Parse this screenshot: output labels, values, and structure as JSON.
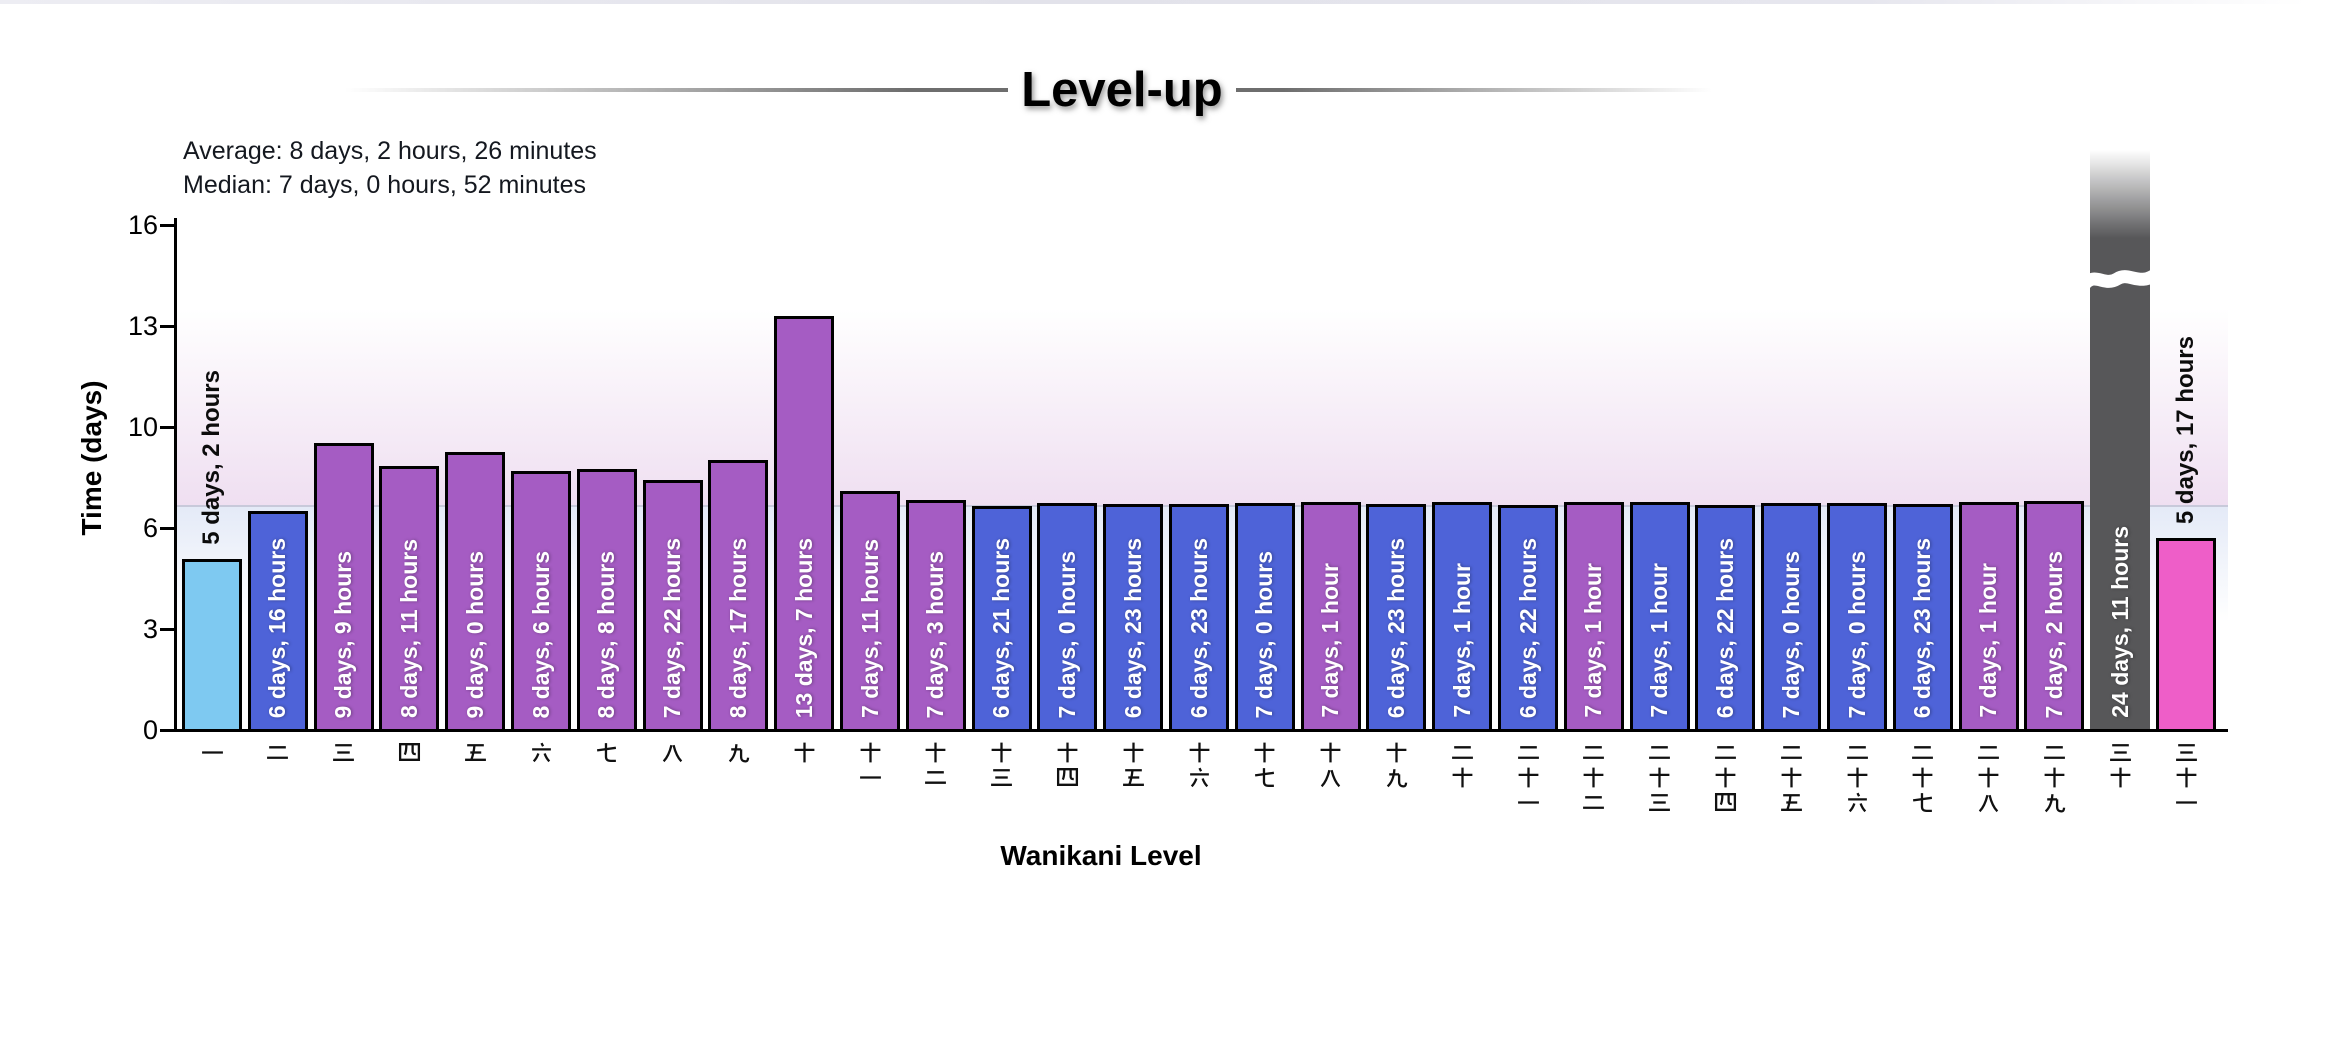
{
  "window": {
    "top_strip": true
  },
  "title": "Level-up",
  "stats": {
    "average_line": "Average: 8 days, 2 hours, 26 minutes",
    "median_line": "Median: 7 days, 0 hours, 52 minutes"
  },
  "palette": {
    "sky": "#7ec9f1",
    "blue": "#4e63d8",
    "purple": "#a55cc3",
    "dark": "#575759",
    "pink": "#ee5ec8",
    "bar_border": "#000000",
    "band_pink": "#efdff1",
    "band_blue": "#e4eaf7",
    "band_boundary_line": "#c8c9da",
    "title_rule": "#6e6e6e"
  },
  "chart_data": {
    "type": "bar",
    "title": "Level-up",
    "xlabel": "Wanikani Level",
    "ylabel": "Time (days)",
    "y_ticks": [
      0,
      3,
      6,
      10,
      13,
      16
    ],
    "grid": false,
    "legend": false,
    "annotations": {
      "average": "8 days, 2 hours, 26 minutes",
      "median": "7 days, 0 hours, 52 minutes"
    },
    "band_boundary_days": 6.9,
    "bars": [
      {
        "level": 1,
        "kanji": "一",
        "duration": "5 days, 2 hours",
        "days": 5.083,
        "color": "sky",
        "label_outside": true,
        "clipped": false
      },
      {
        "level": 2,
        "kanji": "二",
        "duration": "6 days, 16 hours",
        "days": 6.667,
        "color": "blue",
        "label_outside": false,
        "clipped": false
      },
      {
        "level": 3,
        "kanji": "三",
        "duration": "9 days, 9 hours",
        "days": 9.375,
        "color": "purple",
        "label_outside": false,
        "clipped": false
      },
      {
        "level": 4,
        "kanji": "四",
        "duration": "8 days, 11 hours",
        "days": 8.458,
        "color": "purple",
        "label_outside": false,
        "clipped": false
      },
      {
        "level": 5,
        "kanji": "五",
        "duration": "9 days, 0 hours",
        "days": 9.0,
        "color": "purple",
        "label_outside": false,
        "clipped": false
      },
      {
        "level": 6,
        "kanji": "六",
        "duration": "8 days, 6 hours",
        "days": 8.25,
        "color": "purple",
        "label_outside": false,
        "clipped": false
      },
      {
        "level": 7,
        "kanji": "七",
        "duration": "8 days, 8 hours",
        "days": 8.333,
        "color": "purple",
        "label_outside": false,
        "clipped": false
      },
      {
        "level": 8,
        "kanji": "八",
        "duration": "7 days, 22 hours",
        "days": 7.917,
        "color": "purple",
        "label_outside": false,
        "clipped": false
      },
      {
        "level": 9,
        "kanji": "九",
        "duration": "8 days, 17 hours",
        "days": 8.708,
        "color": "purple",
        "label_outside": false,
        "clipped": false
      },
      {
        "level": 10,
        "kanji": "十",
        "duration": "13 days, 7 hours",
        "days": 13.292,
        "color": "purple",
        "label_outside": false,
        "clipped": false
      },
      {
        "level": 11,
        "kanji": "十一",
        "duration": "7 days, 11 hours",
        "days": 7.458,
        "color": "purple",
        "label_outside": false,
        "clipped": false
      },
      {
        "level": 12,
        "kanji": "十二",
        "duration": "7 days, 3 hours",
        "days": 7.125,
        "color": "purple",
        "label_outside": false,
        "clipped": false
      },
      {
        "level": 13,
        "kanji": "十三",
        "duration": "6 days, 21 hours",
        "days": 6.875,
        "color": "blue",
        "label_outside": false,
        "clipped": false
      },
      {
        "level": 14,
        "kanji": "十四",
        "duration": "7 days, 0 hours",
        "days": 7.0,
        "color": "blue",
        "label_outside": false,
        "clipped": false
      },
      {
        "level": 15,
        "kanji": "十五",
        "duration": "6 days, 23 hours",
        "days": 6.958,
        "color": "blue",
        "label_outside": false,
        "clipped": false
      },
      {
        "level": 16,
        "kanji": "十六",
        "duration": "6 days, 23 hours",
        "days": 6.958,
        "color": "blue",
        "label_outside": false,
        "clipped": false
      },
      {
        "level": 17,
        "kanji": "十七",
        "duration": "7 days, 0 hours",
        "days": 7.0,
        "color": "blue",
        "label_outside": false,
        "clipped": false
      },
      {
        "level": 18,
        "kanji": "十八",
        "duration": "7 days, 1 hour",
        "days": 7.042,
        "color": "purple",
        "label_outside": false,
        "clipped": false
      },
      {
        "level": 19,
        "kanji": "十九",
        "duration": "6 days, 23 hours",
        "days": 6.958,
        "color": "blue",
        "label_outside": false,
        "clipped": false
      },
      {
        "level": 20,
        "kanji": "二十",
        "duration": "7 days, 1 hour",
        "days": 7.042,
        "color": "blue",
        "label_outside": false,
        "clipped": false
      },
      {
        "level": 21,
        "kanji": "二十一",
        "duration": "6 days, 22 hours",
        "days": 6.917,
        "color": "blue",
        "label_outside": false,
        "clipped": false
      },
      {
        "level": 22,
        "kanji": "二十二",
        "duration": "7 days, 1 hour",
        "days": 7.042,
        "color": "purple",
        "label_outside": false,
        "clipped": false
      },
      {
        "level": 23,
        "kanji": "二十三",
        "duration": "7 days, 1 hour",
        "days": 7.042,
        "color": "blue",
        "label_outside": false,
        "clipped": false
      },
      {
        "level": 24,
        "kanji": "二十四",
        "duration": "6 days, 22 hours",
        "days": 6.917,
        "color": "blue",
        "label_outside": false,
        "clipped": false
      },
      {
        "level": 25,
        "kanji": "二十五",
        "duration": "7 days, 0 hours",
        "days": 7.0,
        "color": "blue",
        "label_outside": false,
        "clipped": false
      },
      {
        "level": 26,
        "kanji": "二十六",
        "duration": "7 days, 0 hours",
        "days": 7.0,
        "color": "blue",
        "label_outside": false,
        "clipped": false
      },
      {
        "level": 27,
        "kanji": "二十七",
        "duration": "6 days, 23 hours",
        "days": 6.958,
        "color": "blue",
        "label_outside": false,
        "clipped": false
      },
      {
        "level": 28,
        "kanji": "二十八",
        "duration": "7 days, 1 hour",
        "days": 7.042,
        "color": "purple",
        "label_outside": false,
        "clipped": false
      },
      {
        "level": 29,
        "kanji": "二十九",
        "duration": "7 days, 2 hours",
        "days": 7.083,
        "color": "purple",
        "label_outside": false,
        "clipped": false
      },
      {
        "level": 30,
        "kanji": "三十",
        "duration": "24 days, 11 hours",
        "days": 24.458,
        "color": "dark",
        "label_outside": false,
        "clipped": true
      },
      {
        "level": 31,
        "kanji": "三十一",
        "duration": "5 days, 17 hours",
        "days": 5.708,
        "color": "pink",
        "label_outside": true,
        "clipped": false
      }
    ]
  }
}
